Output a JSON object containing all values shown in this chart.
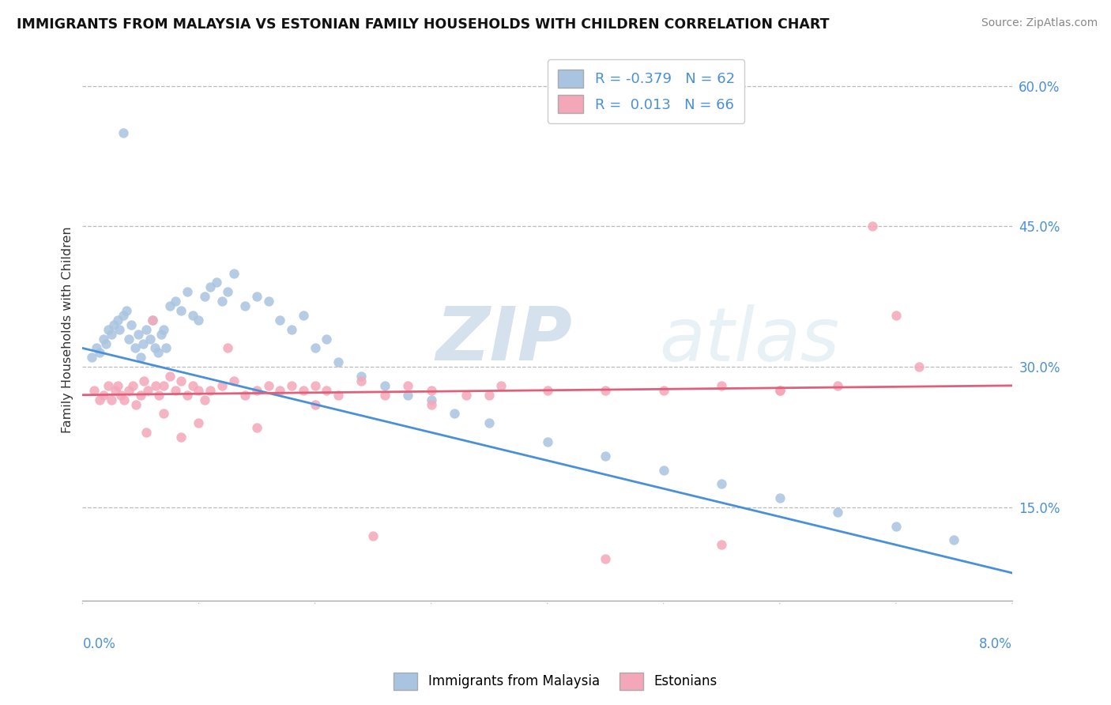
{
  "title": "IMMIGRANTS FROM MALAYSIA VS ESTONIAN FAMILY HOUSEHOLDS WITH CHILDREN CORRELATION CHART",
  "source": "Source: ZipAtlas.com",
  "ylabel": "Family Households with Children",
  "xlim": [
    0.0,
    8.0
  ],
  "ylim": [
    5.0,
    63.0
  ],
  "yticks": [
    15.0,
    30.0,
    45.0,
    60.0
  ],
  "ytick_labels": [
    "15.0%",
    "30.0%",
    "45.0%",
    "60.0%"
  ],
  "legend_blue_r": "-0.379",
  "legend_blue_n": "62",
  "legend_pink_r": "0.013",
  "legend_pink_n": "66",
  "legend_label_blue": "Immigrants from Malaysia",
  "legend_label_pink": "Estonians",
  "color_blue": "#a8c4e0",
  "color_pink": "#f4a7b9",
  "color_trendline_blue": "#4a90d9",
  "color_trendline_pink": "#e0607a",
  "watermark_zip": "ZIP",
  "watermark_atlas": "atlas",
  "blue_scatter_x": [
    0.08,
    0.12,
    0.15,
    0.18,
    0.2,
    0.22,
    0.25,
    0.27,
    0.3,
    0.32,
    0.35,
    0.38,
    0.4,
    0.42,
    0.45,
    0.48,
    0.5,
    0.52,
    0.55,
    0.58,
    0.6,
    0.62,
    0.65,
    0.68,
    0.7,
    0.72,
    0.75,
    0.8,
    0.85,
    0.9,
    0.95,
    1.0,
    1.05,
    1.1,
    1.15,
    1.2,
    1.25,
    1.3,
    1.4,
    1.5,
    1.6,
    1.7,
    1.8,
    1.9,
    2.0,
    2.1,
    2.2,
    2.4,
    2.6,
    2.8,
    3.0,
    3.2,
    3.5,
    4.0,
    4.5,
    5.0,
    5.5,
    6.0,
    6.5,
    7.0,
    7.5,
    0.35
  ],
  "blue_scatter_y": [
    31.0,
    32.0,
    31.5,
    33.0,
    32.5,
    34.0,
    33.5,
    34.5,
    35.0,
    34.0,
    35.5,
    36.0,
    33.0,
    34.5,
    32.0,
    33.5,
    31.0,
    32.5,
    34.0,
    33.0,
    35.0,
    32.0,
    31.5,
    33.5,
    34.0,
    32.0,
    36.5,
    37.0,
    36.0,
    38.0,
    35.5,
    35.0,
    37.5,
    38.5,
    39.0,
    37.0,
    38.0,
    40.0,
    36.5,
    37.5,
    37.0,
    35.0,
    34.0,
    35.5,
    32.0,
    33.0,
    30.5,
    29.0,
    28.0,
    27.0,
    26.5,
    25.0,
    24.0,
    22.0,
    20.5,
    19.0,
    17.5,
    16.0,
    14.5,
    13.0,
    11.5,
    55.0
  ],
  "pink_scatter_x": [
    0.1,
    0.15,
    0.18,
    0.22,
    0.25,
    0.28,
    0.3,
    0.33,
    0.36,
    0.4,
    0.43,
    0.46,
    0.5,
    0.53,
    0.56,
    0.6,
    0.63,
    0.66,
    0.7,
    0.75,
    0.8,
    0.85,
    0.9,
    0.95,
    1.0,
    1.05,
    1.1,
    1.2,
    1.3,
    1.4,
    1.5,
    1.6,
    1.7,
    1.8,
    1.9,
    2.0,
    2.1,
    2.2,
    2.4,
    2.6,
    2.8,
    3.0,
    3.3,
    3.6,
    4.0,
    4.5,
    5.0,
    5.5,
    6.0,
    6.5,
    7.0,
    1.25,
    0.55,
    0.7,
    0.85,
    1.0,
    1.5,
    2.0,
    2.5,
    3.0,
    3.5,
    4.5,
    5.5,
    6.0,
    6.8,
    7.2
  ],
  "pink_scatter_y": [
    27.5,
    26.5,
    27.0,
    28.0,
    26.5,
    27.5,
    28.0,
    27.0,
    26.5,
    27.5,
    28.0,
    26.0,
    27.0,
    28.5,
    27.5,
    35.0,
    28.0,
    27.0,
    28.0,
    29.0,
    27.5,
    28.5,
    27.0,
    28.0,
    27.5,
    26.5,
    27.5,
    28.0,
    28.5,
    27.0,
    27.5,
    28.0,
    27.5,
    28.0,
    27.5,
    28.0,
    27.5,
    27.0,
    28.5,
    27.0,
    28.0,
    27.5,
    27.0,
    28.0,
    27.5,
    27.5,
    27.5,
    28.0,
    27.5,
    28.0,
    35.5,
    32.0,
    23.0,
    25.0,
    22.5,
    24.0,
    23.5,
    26.0,
    12.0,
    26.0,
    27.0,
    9.5,
    11.0,
    27.5,
    45.0,
    30.0
  ]
}
